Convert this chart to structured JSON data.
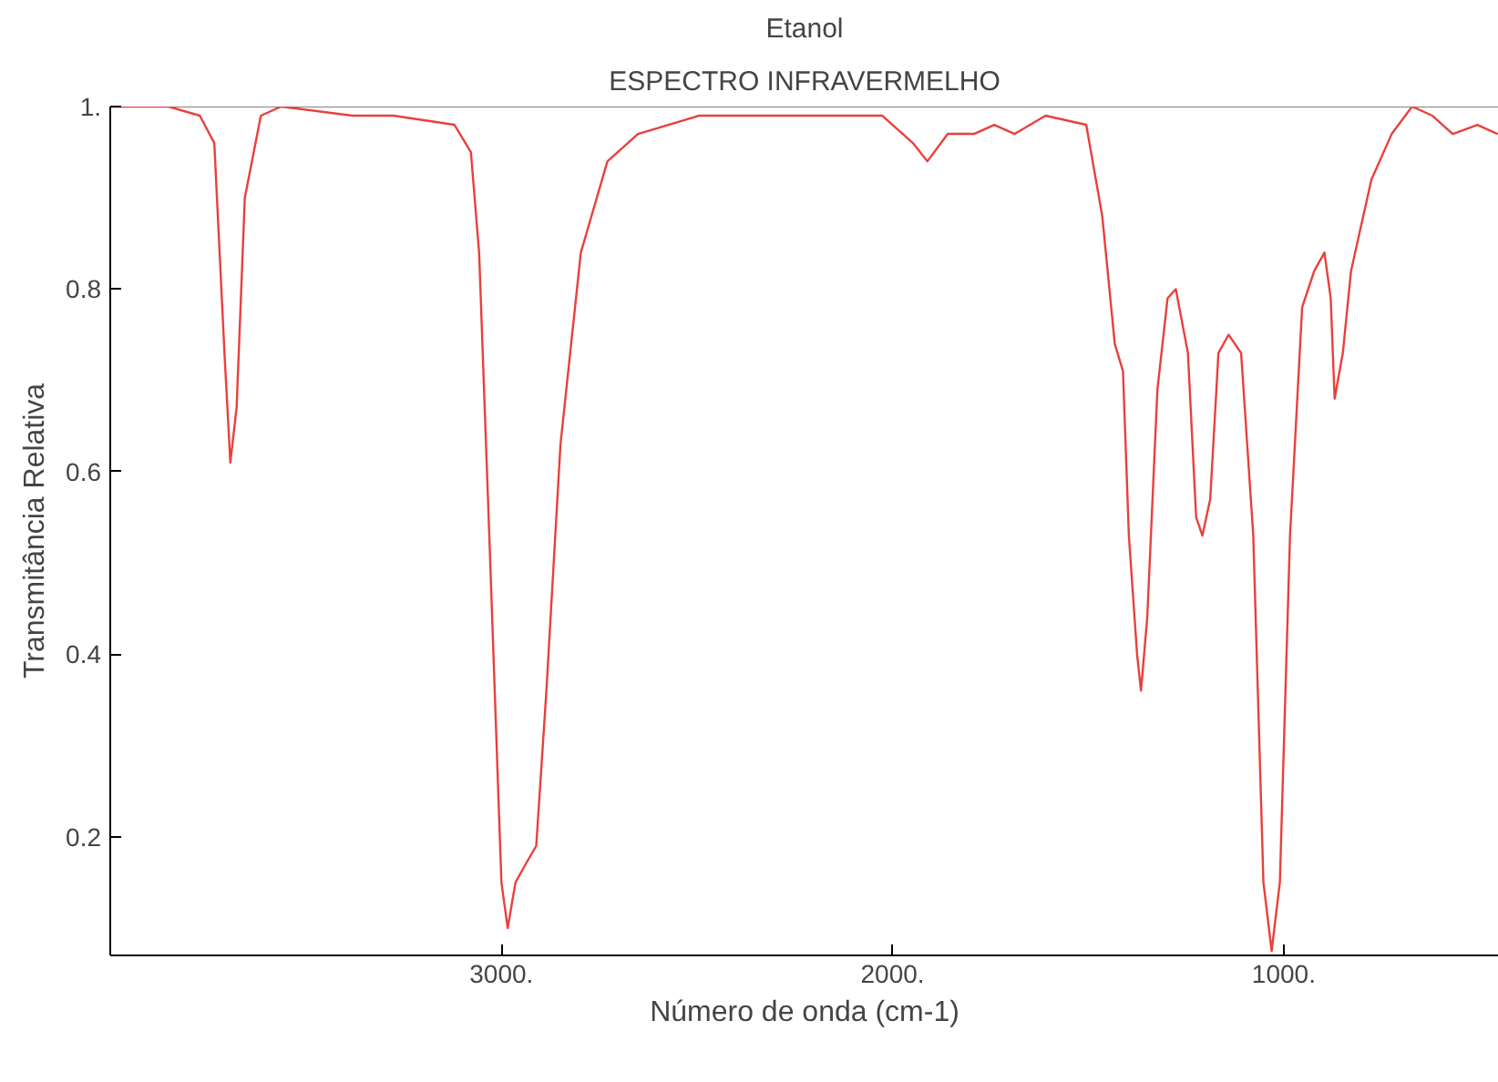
{
  "chart_data": {
    "type": "line",
    "title": "Etanol",
    "subtitle": "ESPECTRO INFRAVERMELHO",
    "xlabel": "Número de onda (cm-1)",
    "ylabel": "Transmitância Relativa",
    "xlim": [
      4000,
      450
    ],
    "ylim": [
      0.07,
      1.0
    ],
    "xticks": [
      {
        "value": 3000,
        "label": "3000."
      },
      {
        "value": 2000,
        "label": "2000."
      },
      {
        "value": 1000,
        "label": "1000."
      }
    ],
    "yticks": [
      0.2,
      0.4,
      0.6,
      0.8,
      {
        "value": 1.0,
        "label": "1."
      }
    ],
    "grid": false,
    "series": [
      {
        "color": "#e8403c",
        "x": [
          4000,
          3851,
          3771,
          3734,
          3708,
          3693,
          3677,
          3656,
          3615,
          3563,
          3380,
          3276,
          3120,
          3078,
          3057,
          3031,
          3000,
          2984,
          2964,
          2938,
          2911,
          2885,
          2849,
          2797,
          2729,
          2651,
          2495,
          2234,
          2026,
          1948,
          1911,
          1859,
          1792,
          1740,
          1688,
          1609,
          1505,
          1464,
          1432,
          1411,
          1396,
          1375,
          1365,
          1349,
          1323,
          1297,
          1276,
          1245,
          1224,
          1208,
          1188,
          1167,
          1141,
          1109,
          1078,
          1052,
          1031,
          1010,
          984,
          953,
          922,
          896,
          880,
          870,
          849,
          828,
          776,
          724,
          672,
          620,
          568,
          505,
          453
        ],
        "values": [
          1.0,
          1.0,
          0.99,
          0.96,
          0.73,
          0.61,
          0.67,
          0.9,
          0.99,
          1.0,
          0.99,
          0.99,
          0.98,
          0.95,
          0.84,
          0.53,
          0.15,
          0.1,
          0.15,
          0.17,
          0.19,
          0.36,
          0.63,
          0.84,
          0.94,
          0.97,
          0.99,
          0.99,
          0.99,
          0.96,
          0.94,
          0.97,
          0.97,
          0.98,
          0.97,
          0.99,
          0.98,
          0.88,
          0.74,
          0.71,
          0.53,
          0.4,
          0.36,
          0.44,
          0.69,
          0.79,
          0.8,
          0.73,
          0.55,
          0.53,
          0.57,
          0.73,
          0.75,
          0.73,
          0.53,
          0.15,
          0.075,
          0.15,
          0.53,
          0.78,
          0.82,
          0.84,
          0.79,
          0.68,
          0.73,
          0.82,
          0.92,
          0.97,
          1.0,
          0.99,
          0.97,
          0.98,
          0.97
        ]
      }
    ]
  }
}
